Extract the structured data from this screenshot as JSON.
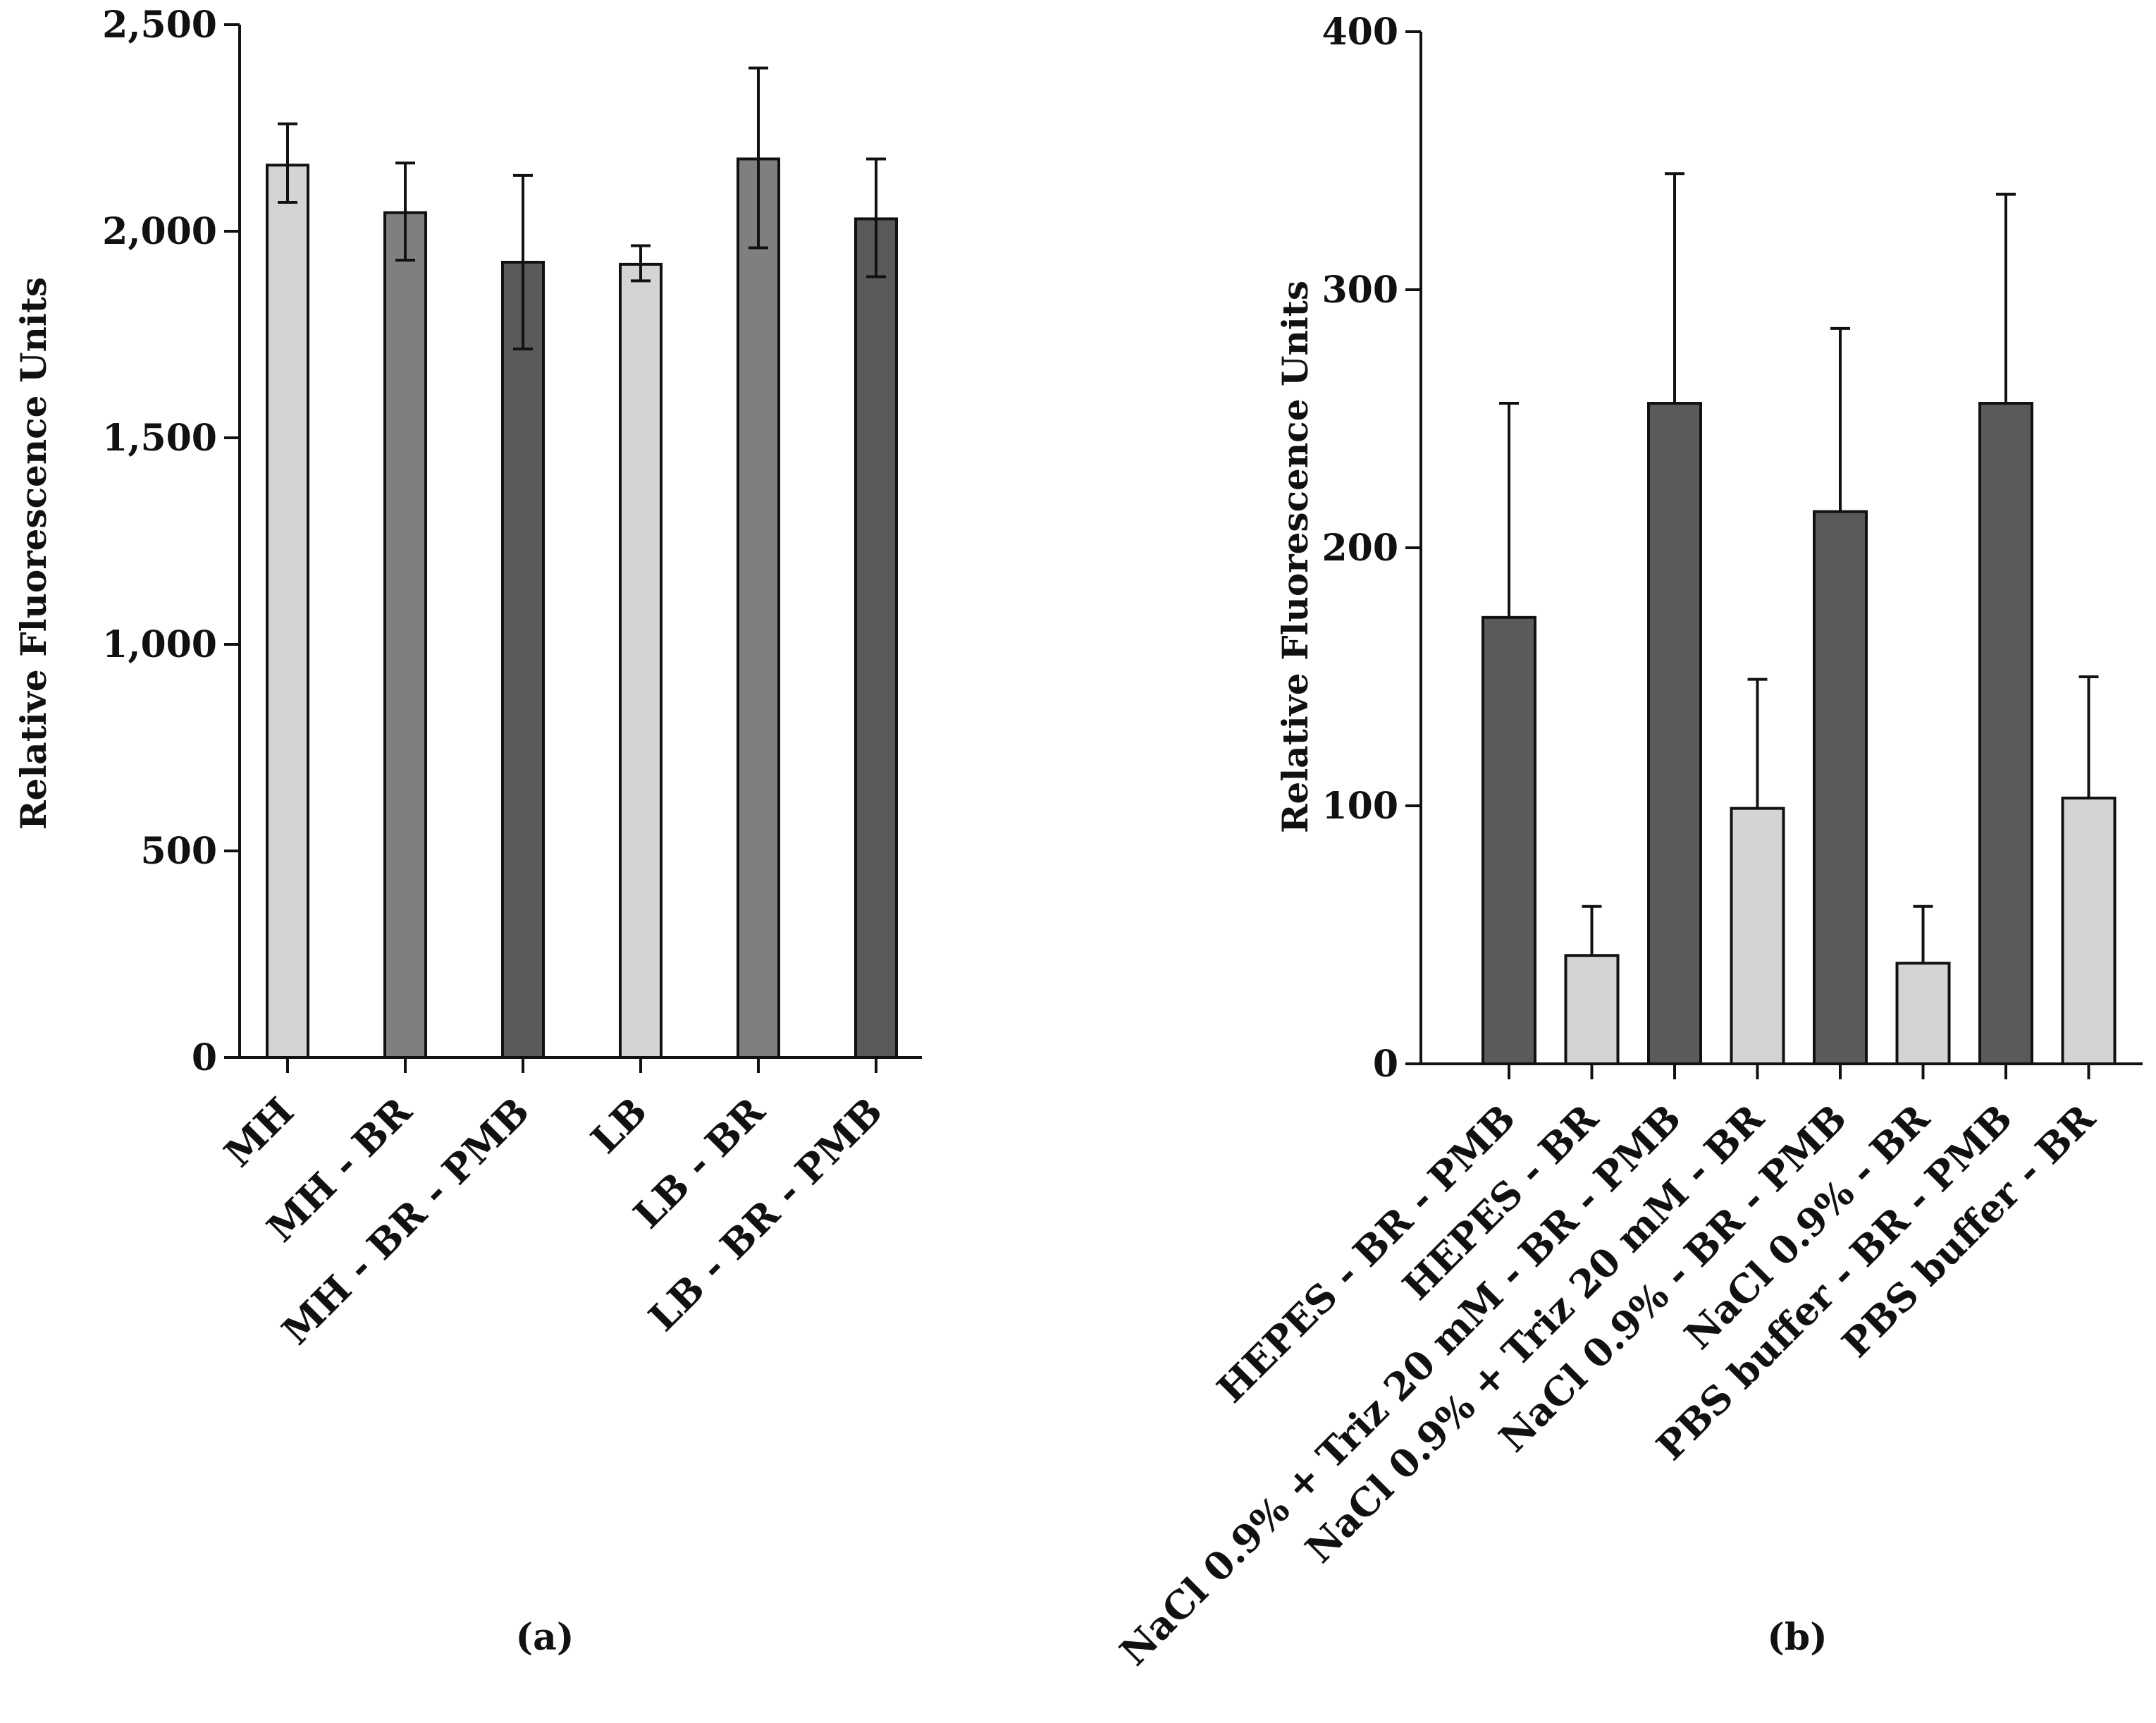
{
  "chart_data": [
    {
      "type": "bar",
      "panel_label": "(a)",
      "ylabel": "Relative Fluorescence Units",
      "ylim": [
        0,
        2500
      ],
      "yticks": [
        0,
        500,
        1000,
        1500,
        2000,
        2500
      ],
      "ytick_labels": [
        "0",
        "500",
        "1,000",
        "1,500",
        "2,000",
        "2,500"
      ],
      "categories": [
        "MH",
        "MH - BR",
        "MH - BR - PMB",
        "LB",
        "LB - BR",
        "LB - BR - PMB"
      ],
      "values": [
        2160,
        2045,
        1925,
        1920,
        2175,
        2030
      ],
      "error_low": [
        2070,
        1930,
        1715,
        1880,
        1960,
        1890
      ],
      "error_high": [
        2260,
        2165,
        2135,
        1965,
        2395,
        2175
      ],
      "bar_colors": [
        "#d4d4d4",
        "#7f7f7f",
        "#5a5a5a",
        "#d4d4d4",
        "#7f7f7f",
        "#5a5a5a"
      ]
    },
    {
      "type": "bar",
      "panel_label": "(b)",
      "ylabel": "Relative Fluorescence Units",
      "ylim": [
        0,
        400
      ],
      "yticks": [
        0,
        100,
        200,
        300,
        400
      ],
      "ytick_labels": [
        "0",
        "100",
        "200",
        "300",
        "400"
      ],
      "categories": [
        "HEPES - BR - PMB",
        "HEPES - BR",
        "NaCl 0.9% + Triz 20 mM - BR - PMB",
        "NaCl 0.9% + Triz 20 mM - BR",
        "NaCl 0.9% - BR - PMB",
        "NaCl 0.9% - BR",
        "PBS buffer - BR - PMB",
        "PBS buffer - BR"
      ],
      "values": [
        173,
        42,
        256,
        99,
        214,
        39,
        256,
        103
      ],
      "error_low": [
        173,
        42,
        256,
        99,
        214,
        39,
        256,
        103
      ],
      "error_high": [
        256,
        61,
        345,
        149,
        285,
        61,
        337,
        150
      ],
      "bar_colors": [
        "#5a5a5a",
        "#d4d4d4",
        "#5a5a5a",
        "#d4d4d4",
        "#5a5a5a",
        "#d4d4d4",
        "#5a5a5a",
        "#d4d4d4"
      ]
    }
  ]
}
